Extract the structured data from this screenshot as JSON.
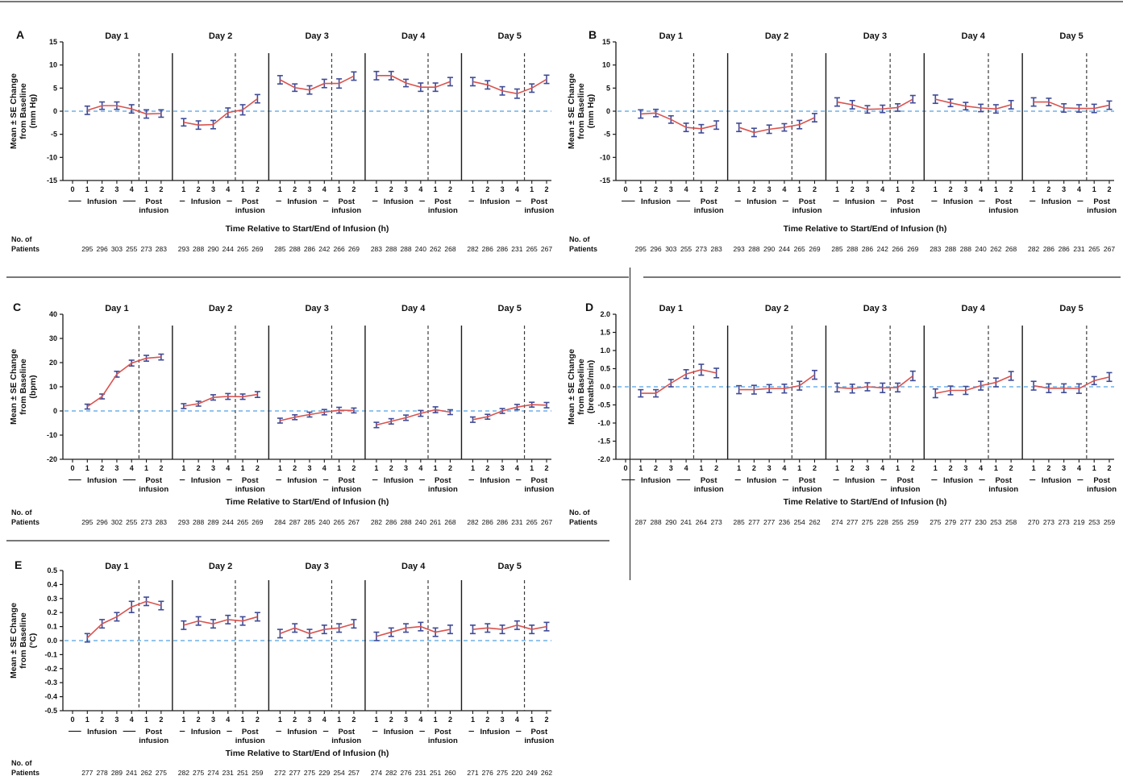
{
  "figure": {
    "x_axis_title": "Time Relative to Start/End of Infusion (h)",
    "patients_label_line1": "No. of",
    "patients_label_line2": "Patients",
    "infusion_label": "Infusion",
    "post_infusion_label_line1": "Post",
    "post_infusion_label_line2": "infusion",
    "colors": {
      "series_line": "#d9534e",
      "error_bar": "#3f4b96",
      "zero_baseline": "#6fb0e8",
      "day_separator": "#1a1a1a",
      "infusion_boundary": "#3c3c3c",
      "axis": "#1a1a1a",
      "row_divider": "#787878"
    }
  },
  "chart_data": [
    {
      "panel": "A",
      "type": "line",
      "ylabel_lines": [
        "Mean ± SE Change",
        "from Baseline",
        "(mm Hg)"
      ],
      "ylim": [
        -15,
        15
      ],
      "ytick_values": [
        15,
        10,
        5,
        0,
        -5,
        -10,
        -15
      ],
      "ytick_labels": [
        "15",
        "10",
        "5",
        "0",
        "-5",
        "-10",
        "-15"
      ],
      "days": [
        {
          "label": "Day 1",
          "tick_labels": [
            "0",
            "1",
            "2",
            "3",
            "4",
            "1",
            "2"
          ],
          "means": [
            0.2,
            1.2,
            1.2,
            0.5,
            -0.6,
            -0.5
          ],
          "se": [
            0.9,
            0.8,
            0.8,
            0.9,
            0.9,
            0.8
          ],
          "n_patients": [
            295,
            296,
            303,
            255,
            273,
            283
          ]
        },
        {
          "label": "Day 2",
          "tick_labels": [
            "1",
            "2",
            "3",
            "4",
            "1",
            "2"
          ],
          "means": [
            -2.4,
            -3.0,
            -2.9,
            -0.3,
            0.3,
            2.7
          ],
          "se": [
            0.8,
            0.9,
            0.9,
            1.0,
            1.1,
            0.9
          ],
          "n_patients": [
            293,
            288,
            290,
            244,
            265,
            269
          ]
        },
        {
          "label": "Day 3",
          "tick_labels": [
            "1",
            "2",
            "3",
            "4",
            "1",
            "2"
          ],
          "means": [
            6.8,
            5.1,
            4.6,
            6.0,
            6.0,
            7.6
          ],
          "se": [
            0.9,
            0.8,
            0.9,
            0.9,
            1.0,
            0.9
          ],
          "n_patients": [
            285,
            288,
            286,
            242,
            266,
            269
          ]
        },
        {
          "label": "Day 4",
          "tick_labels": [
            "1",
            "2",
            "3",
            "4",
            "1",
            "2"
          ],
          "means": [
            7.7,
            7.7,
            6.1,
            5.2,
            5.2,
            6.4
          ],
          "se": [
            0.9,
            0.9,
            0.8,
            0.9,
            0.9,
            0.9
          ],
          "n_patients": [
            283,
            288,
            288,
            240,
            262,
            268
          ]
        },
        {
          "label": "Day 5",
          "tick_labels": [
            "1",
            "2",
            "3",
            "4",
            "1",
            "2"
          ],
          "means": [
            6.4,
            5.7,
            4.4,
            3.8,
            5.0,
            6.9
          ],
          "se": [
            0.9,
            0.9,
            0.9,
            1.0,
            0.9,
            0.9
          ],
          "n_patients": [
            282,
            286,
            286,
            231,
            265,
            267
          ]
        }
      ]
    },
    {
      "panel": "B",
      "type": "line",
      "ylabel_lines": [
        "Mean ± SE Change",
        "from Baseline",
        "(mm Hg)"
      ],
      "ylim": [
        -15,
        15
      ],
      "ytick_values": [
        15,
        10,
        5,
        0,
        -5,
        -10,
        -15
      ],
      "ytick_labels": [
        "15",
        "10",
        "5",
        "0",
        "-5",
        "-10",
        "-15"
      ],
      "days": [
        {
          "label": "Day 1",
          "tick_labels": [
            "0",
            "1",
            "2",
            "3",
            "4",
            "1",
            "2"
          ],
          "means": [
            -0.6,
            -0.4,
            -1.8,
            -3.5,
            -3.8,
            -3.0
          ],
          "se": [
            0.9,
            0.8,
            0.8,
            0.9,
            0.9,
            0.9
          ],
          "n_patients": [
            295,
            296,
            303,
            255,
            273,
            283
          ]
        },
        {
          "label": "Day 2",
          "tick_labels": [
            "1",
            "2",
            "3",
            "4",
            "1",
            "2"
          ],
          "means": [
            -3.5,
            -4.6,
            -3.9,
            -3.5,
            -2.9,
            -1.4
          ],
          "se": [
            0.9,
            0.9,
            0.9,
            0.8,
            0.9,
            0.9
          ],
          "n_patients": [
            293,
            288,
            290,
            244,
            265,
            269
          ]
        },
        {
          "label": "Day 3",
          "tick_labels": [
            "1",
            "2",
            "3",
            "4",
            "1",
            "2"
          ],
          "means": [
            2.0,
            1.4,
            0.4,
            0.5,
            0.8,
            2.6
          ],
          "se": [
            0.9,
            0.9,
            0.8,
            0.8,
            0.8,
            0.8
          ],
          "n_patients": [
            285,
            288,
            286,
            242,
            266,
            269
          ]
        },
        {
          "label": "Day 4",
          "tick_labels": [
            "1",
            "2",
            "3",
            "4",
            "1",
            "2"
          ],
          "means": [
            2.6,
            1.8,
            1.1,
            0.7,
            0.5,
            1.4
          ],
          "se": [
            0.9,
            0.8,
            0.8,
            0.8,
            0.9,
            0.9
          ],
          "n_patients": [
            283,
            288,
            288,
            240,
            262,
            268
          ]
        },
        {
          "label": "Day 5",
          "tick_labels": [
            "1",
            "2",
            "3",
            "4",
            "1",
            "2"
          ],
          "means": [
            2.0,
            2.0,
            0.7,
            0.6,
            0.6,
            1.3
          ],
          "se": [
            0.9,
            0.8,
            0.9,
            0.8,
            0.9,
            0.9
          ],
          "n_patients": [
            282,
            286,
            286,
            231,
            265,
            267
          ]
        }
      ]
    },
    {
      "panel": "C",
      "type": "line",
      "ylabel_lines": [
        "Mean ± SE Change",
        "from Baseline",
        "(bpm)"
      ],
      "ylim": [
        -20,
        40
      ],
      "ytick_values": [
        40,
        30,
        20,
        10,
        0,
        -10,
        -20
      ],
      "ytick_labels": [
        "40",
        "30",
        "20",
        "10",
        "0",
        "-10",
        "-20"
      ],
      "days": [
        {
          "label": "Day 1",
          "tick_labels": [
            "0",
            "1",
            "2",
            "3",
            "4",
            "1",
            "2"
          ],
          "means": [
            1.8,
            6.0,
            15.2,
            19.8,
            21.8,
            22.3
          ],
          "se": [
            1.0,
            1.0,
            1.2,
            1.2,
            1.2,
            1.2
          ],
          "n_patients": [
            295,
            296,
            302,
            255,
            273,
            283
          ]
        },
        {
          "label": "Day 2",
          "tick_labels": [
            "1",
            "2",
            "3",
            "4",
            "1",
            "2"
          ],
          "means": [
            2.0,
            3.0,
            5.6,
            6.0,
            5.9,
            6.8
          ],
          "se": [
            1.0,
            1.0,
            1.1,
            1.2,
            1.1,
            1.2
          ],
          "n_patients": [
            293,
            288,
            289,
            244,
            265,
            269
          ]
        },
        {
          "label": "Day 3",
          "tick_labels": [
            "1",
            "2",
            "3",
            "4",
            "1",
            "2"
          ],
          "means": [
            -4.0,
            -2.6,
            -1.5,
            -0.5,
            0.3,
            0.2
          ],
          "se": [
            1.0,
            1.0,
            1.0,
            1.1,
            1.2,
            1.0
          ],
          "n_patients": [
            284,
            287,
            285,
            240,
            265,
            267
          ]
        },
        {
          "label": "Day 4",
          "tick_labels": [
            "1",
            "2",
            "3",
            "4",
            "1",
            "2"
          ],
          "means": [
            -5.8,
            -4.3,
            -2.8,
            -1.0,
            0.5,
            -0.5
          ],
          "se": [
            1.1,
            1.1,
            1.1,
            1.2,
            1.2,
            1.0
          ],
          "n_patients": [
            282,
            286,
            288,
            240,
            261,
            268
          ]
        },
        {
          "label": "Day 5",
          "tick_labels": [
            "1",
            "2",
            "3",
            "4",
            "1",
            "2"
          ],
          "means": [
            -3.6,
            -2.4,
            0.0,
            1.6,
            2.6,
            2.4
          ],
          "se": [
            1.1,
            1.0,
            1.0,
            1.1,
            1.0,
            1.1
          ],
          "n_patients": [
            282,
            286,
            286,
            231,
            265,
            267
          ]
        }
      ]
    },
    {
      "panel": "D",
      "type": "line",
      "ylabel_lines": [
        "Mean ± SE Change",
        "from Baseline",
        "(breaths/min)"
      ],
      "ylim": [
        -2.0,
        2.0
      ],
      "ytick_values": [
        2.0,
        1.5,
        1.0,
        0.5,
        0.0,
        -0.5,
        -1.0,
        -1.5,
        -2.0
      ],
      "ytick_labels": [
        "2.0",
        "1.5",
        "1.0",
        "0.5",
        "0.0",
        "-0.5",
        "-1.0",
        "-1.5",
        "-2.0"
      ],
      "days": [
        {
          "label": "Day 1",
          "tick_labels": [
            "0",
            "1",
            "2",
            "3",
            "4",
            "1",
            "2"
          ],
          "means": [
            -0.18,
            -0.18,
            0.1,
            0.35,
            0.47,
            0.38
          ],
          "se": [
            0.1,
            0.1,
            0.1,
            0.12,
            0.15,
            0.13
          ],
          "n_patients": [
            287,
            288,
            290,
            241,
            264,
            273
          ]
        },
        {
          "label": "Day 2",
          "tick_labels": [
            "1",
            "2",
            "3",
            "4",
            "1",
            "2"
          ],
          "means": [
            -0.08,
            -0.08,
            -0.05,
            -0.05,
            0.03,
            0.33
          ],
          "se": [
            0.11,
            0.12,
            0.11,
            0.12,
            0.12,
            0.12
          ],
          "n_patients": [
            285,
            277,
            277,
            236,
            254,
            262
          ]
        },
        {
          "label": "Day 3",
          "tick_labels": [
            "1",
            "2",
            "3",
            "4",
            "1",
            "2"
          ],
          "means": [
            -0.02,
            -0.05,
            0.0,
            -0.03,
            -0.02,
            0.3
          ],
          "se": [
            0.12,
            0.12,
            0.11,
            0.13,
            0.12,
            0.13
          ],
          "n_patients": [
            274,
            277,
            275,
            228,
            255,
            259
          ]
        },
        {
          "label": "Day 4",
          "tick_labels": [
            "1",
            "2",
            "3",
            "4",
            "1",
            "2"
          ],
          "means": [
            -0.18,
            -0.1,
            -0.1,
            0.03,
            0.12,
            0.3
          ],
          "se": [
            0.12,
            0.12,
            0.11,
            0.12,
            0.12,
            0.12
          ],
          "n_patients": [
            275,
            279,
            277,
            230,
            253,
            258
          ]
        },
        {
          "label": "Day 5",
          "tick_labels": [
            "1",
            "2",
            "3",
            "4",
            "1",
            "2"
          ],
          "means": [
            0.03,
            -0.04,
            -0.04,
            -0.05,
            0.17,
            0.27
          ],
          "se": [
            0.12,
            0.12,
            0.12,
            0.13,
            0.11,
            0.12
          ],
          "n_patients": [
            270,
            273,
            273,
            219,
            253,
            259
          ]
        }
      ]
    },
    {
      "panel": "E",
      "type": "line",
      "ylabel_lines": [
        "Mean ± SE Change",
        "from Baseline",
        "(°C)"
      ],
      "ylim": [
        -0.5,
        0.5
      ],
      "ytick_values": [
        0.5,
        0.4,
        0.3,
        0.2,
        0.1,
        0.0,
        -0.1,
        -0.2,
        -0.3,
        -0.4,
        -0.5
      ],
      "ytick_labels": [
        "0.5",
        "0.4",
        "0.3",
        "0.2",
        "0.1",
        "0.0",
        "-0.1",
        "-0.2",
        "-0.3",
        "-0.4",
        "-0.5"
      ],
      "days": [
        {
          "label": "Day 1",
          "tick_labels": [
            "0",
            "1",
            "2",
            "3",
            "4",
            "1",
            "2"
          ],
          "means": [
            0.02,
            0.12,
            0.17,
            0.24,
            0.28,
            0.25
          ],
          "se": [
            0.03,
            0.03,
            0.03,
            0.04,
            0.03,
            0.03
          ],
          "n_patients": [
            277,
            278,
            289,
            241,
            262,
            275
          ]
        },
        {
          "label": "Day 2",
          "tick_labels": [
            "1",
            "2",
            "3",
            "4",
            "1",
            "2"
          ],
          "means": [
            0.11,
            0.14,
            0.12,
            0.15,
            0.14,
            0.17
          ],
          "se": [
            0.03,
            0.03,
            0.03,
            0.03,
            0.03,
            0.03
          ],
          "n_patients": [
            282,
            275,
            274,
            231,
            251,
            259
          ]
        },
        {
          "label": "Day 3",
          "tick_labels": [
            "1",
            "2",
            "3",
            "4",
            "1",
            "2"
          ],
          "means": [
            0.05,
            0.09,
            0.05,
            0.08,
            0.09,
            0.12
          ],
          "se": [
            0.03,
            0.03,
            0.03,
            0.03,
            0.03,
            0.03
          ],
          "n_patients": [
            272,
            277,
            275,
            229,
            254,
            257
          ]
        },
        {
          "label": "Day 4",
          "tick_labels": [
            "1",
            "2",
            "3",
            "4",
            "1",
            "2"
          ],
          "means": [
            0.03,
            0.06,
            0.09,
            0.1,
            0.06,
            0.08
          ],
          "se": [
            0.03,
            0.03,
            0.03,
            0.03,
            0.03,
            0.03
          ],
          "n_patients": [
            274,
            282,
            276,
            231,
            251,
            260
          ]
        },
        {
          "label": "Day 5",
          "tick_labels": [
            "1",
            "2",
            "3",
            "4",
            "1",
            "2"
          ],
          "means": [
            0.08,
            0.09,
            0.08,
            0.11,
            0.08,
            0.1
          ],
          "se": [
            0.03,
            0.03,
            0.03,
            0.03,
            0.03,
            0.03
          ],
          "n_patients": [
            271,
            276,
            275,
            220,
            249,
            262
          ]
        }
      ]
    }
  ]
}
